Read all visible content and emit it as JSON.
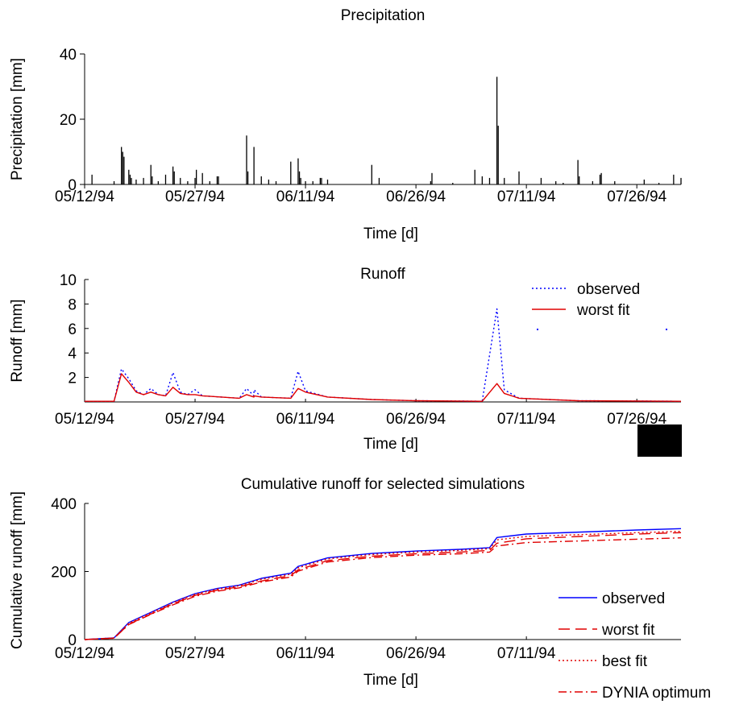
{
  "chart_data": [
    {
      "type": "bar",
      "title": "Precipitation",
      "xlabel": "Time [d]",
      "ylabel": "Precipitation [mm]",
      "ylim": [
        0,
        40
      ],
      "yticks": [
        "0",
        "20",
        "40"
      ],
      "xticks": [
        "05/12/94",
        "05/27/94",
        "06/11/94",
        "06/26/94",
        "07/11/94",
        "07/26/94"
      ],
      "xlim": [
        "05/12/94",
        "08/01/94"
      ],
      "series": [
        {
          "color": "#000000",
          "points": [
            {
              "x": "05/13/94",
              "y": 3.0
            },
            {
              "x": "05/16/94",
              "y": 1.0
            },
            {
              "x": "05/17/94",
              "y": 11.5
            },
            {
              "x": "05/17/94",
              "y": 10.0
            },
            {
              "x": "05/17/94",
              "y": 8.5
            },
            {
              "x": "05/18/94",
              "y": 4.5
            },
            {
              "x": "05/18/94",
              "y": 3.0
            },
            {
              "x": "05/18/94",
              "y": 2.0
            },
            {
              "x": "05/19/94",
              "y": 1.5
            },
            {
              "x": "05/20/94",
              "y": 2.0
            },
            {
              "x": "05/21/94",
              "y": 6.0
            },
            {
              "x": "05/21/94",
              "y": 2.5
            },
            {
              "x": "05/22/94",
              "y": 1.0
            },
            {
              "x": "05/23/94",
              "y": 3.0
            },
            {
              "x": "05/24/94",
              "y": 5.5
            },
            {
              "x": "05/24/94",
              "y": 4.0
            },
            {
              "x": "05/25/94",
              "y": 2.0
            },
            {
              "x": "05/26/94",
              "y": 1.0
            },
            {
              "x": "05/27/94",
              "y": 2.0
            },
            {
              "x": "05/27/94",
              "y": 4.5
            },
            {
              "x": "05/28/94",
              "y": 3.5
            },
            {
              "x": "05/29/94",
              "y": 1.0
            },
            {
              "x": "05/30/94",
              "y": 2.5
            },
            {
              "x": "05/30/94",
              "y": 2.5
            },
            {
              "x": "06/03/94",
              "y": 15.0
            },
            {
              "x": "06/03/94",
              "y": 4.0
            },
            {
              "x": "06/04/94",
              "y": 11.5
            },
            {
              "x": "06/05/94",
              "y": 2.5
            },
            {
              "x": "06/06/94",
              "y": 1.5
            },
            {
              "x": "06/07/94",
              "y": 1.0
            },
            {
              "x": "06/09/94",
              "y": 7.0
            },
            {
              "x": "06/10/94",
              "y": 8.0
            },
            {
              "x": "06/10/94",
              "y": 4.0
            },
            {
              "x": "06/10/94",
              "y": 2.0
            },
            {
              "x": "06/11/94",
              "y": 1.0
            },
            {
              "x": "06/12/94",
              "y": 1.0
            },
            {
              "x": "06/13/94",
              "y": 2.0
            },
            {
              "x": "06/13/94",
              "y": 2.0
            },
            {
              "x": "06/14/94",
              "y": 1.5
            },
            {
              "x": "06/20/94",
              "y": 6.0
            },
            {
              "x": "06/21/94",
              "y": 2.0
            },
            {
              "x": "06/28/94",
              "y": 1.0
            },
            {
              "x": "06/28/94",
              "y": 3.5
            },
            {
              "x": "07/01/94",
              "y": 0.5
            },
            {
              "x": "07/04/94",
              "y": 4.5
            },
            {
              "x": "07/05/94",
              "y": 2.5
            },
            {
              "x": "07/06/94",
              "y": 2.0
            },
            {
              "x": "07/07/94",
              "y": 33.0
            },
            {
              "x": "07/07/94",
              "y": 18.0
            },
            {
              "x": "07/08/94",
              "y": 2.0
            },
            {
              "x": "07/10/94",
              "y": 4.0
            },
            {
              "x": "07/13/94",
              "y": 2.0
            },
            {
              "x": "07/15/94",
              "y": 1.0
            },
            {
              "x": "07/16/94",
              "y": 0.5
            },
            {
              "x": "07/18/94",
              "y": 7.5
            },
            {
              "x": "07/18/94",
              "y": 2.5
            },
            {
              "x": "07/20/94",
              "y": 1.0
            },
            {
              "x": "07/21/94",
              "y": 3.0
            },
            {
              "x": "07/21/94",
              "y": 3.5
            },
            {
              "x": "07/23/94",
              "y": 1.0
            },
            {
              "x": "07/27/94",
              "y": 1.5
            },
            {
              "x": "07/29/94",
              "y": 0.5
            },
            {
              "x": "07/31/94",
              "y": 3.0
            },
            {
              "x": "08/01/94",
              "y": 2.0
            }
          ]
        }
      ]
    },
    {
      "type": "line",
      "title": "Runoff",
      "xlabel": "Time [d]",
      "ylabel": "Runoff [mm]",
      "ylim": [
        0,
        10
      ],
      "yticks": [
        "2",
        "4",
        "6",
        "8",
        "10"
      ],
      "xticks": [
        "05/12/94",
        "05/27/94",
        "06/11/94",
        "06/26/94",
        "07/11/94",
        "07/26/94"
      ],
      "xlim": [
        "05/12/94",
        "08/01/94"
      ],
      "legend": "top-right",
      "series": [
        {
          "name": "observed",
          "color": "#0000ff",
          "dash": "dotted",
          "points": [
            {
              "x": "05/12/94",
              "y": 0.05
            },
            {
              "x": "05/16/94",
              "y": 0.05
            },
            {
              "x": "05/17/94",
              "y": 2.7
            },
            {
              "x": "05/18/94",
              "y": 1.9
            },
            {
              "x": "05/19/94",
              "y": 0.9
            },
            {
              "x": "05/20/94",
              "y": 0.6
            },
            {
              "x": "05/21/94",
              "y": 1.1
            },
            {
              "x": "05/22/94",
              "y": 0.6
            },
            {
              "x": "05/23/94",
              "y": 0.5
            },
            {
              "x": "05/24/94",
              "y": 2.4
            },
            {
              "x": "05/25/94",
              "y": 0.8
            },
            {
              "x": "05/26/94",
              "y": 0.6
            },
            {
              "x": "05/27/94",
              "y": 1.0
            },
            {
              "x": "05/28/94",
              "y": 0.5
            },
            {
              "x": "06/02/94",
              "y": 0.3
            },
            {
              "x": "06/03/94",
              "y": 1.1
            },
            {
              "x": "06/04/94",
              "y": 0.5
            },
            {
              "x": "06/04/94",
              "y": 1.0
            },
            {
              "x": "06/05/94",
              "y": 0.4
            },
            {
              "x": "06/09/94",
              "y": 0.3
            },
            {
              "x": "06/10/94",
              "y": 2.5
            },
            {
              "x": "06/11/94",
              "y": 0.9
            },
            {
              "x": "06/14/94",
              "y": 0.4
            },
            {
              "x": "06/20/94",
              "y": 0.2
            },
            {
              "x": "06/26/94",
              "y": 0.1
            },
            {
              "x": "07/05/94",
              "y": 0.05
            },
            {
              "x": "07/07/94",
              "y": 7.6
            },
            {
              "x": "07/08/94",
              "y": 1.0
            },
            {
              "x": "07/10/94",
              "y": 0.3
            },
            {
              "x": "07/18/94",
              "y": 0.1
            },
            {
              "x": "08/01/94",
              "y": 0.05
            }
          ]
        },
        {
          "name": "worst fit",
          "color": "#e00000",
          "dash": "solid",
          "points": [
            {
              "x": "05/12/94",
              "y": 0.05
            },
            {
              "x": "05/16/94",
              "y": 0.05
            },
            {
              "x": "05/17/94",
              "y": 2.3
            },
            {
              "x": "05/18/94",
              "y": 1.6
            },
            {
              "x": "05/19/94",
              "y": 0.8
            },
            {
              "x": "05/20/94",
              "y": 0.6
            },
            {
              "x": "05/21/94",
              "y": 0.8
            },
            {
              "x": "05/22/94",
              "y": 0.6
            },
            {
              "x": "05/23/94",
              "y": 0.5
            },
            {
              "x": "05/24/94",
              "y": 1.2
            },
            {
              "x": "05/25/94",
              "y": 0.7
            },
            {
              "x": "05/26/94",
              "y": 0.6
            },
            {
              "x": "05/27/94",
              "y": 0.6
            },
            {
              "x": "05/28/94",
              "y": 0.5
            },
            {
              "x": "06/02/94",
              "y": 0.3
            },
            {
              "x": "06/03/94",
              "y": 0.6
            },
            {
              "x": "06/04/94",
              "y": 0.4
            },
            {
              "x": "06/04/94",
              "y": 0.5
            },
            {
              "x": "06/05/94",
              "y": 0.4
            },
            {
              "x": "06/09/94",
              "y": 0.3
            },
            {
              "x": "06/10/94",
              "y": 1.1
            },
            {
              "x": "06/11/94",
              "y": 0.8
            },
            {
              "x": "06/14/94",
              "y": 0.4
            },
            {
              "x": "06/20/94",
              "y": 0.2
            },
            {
              "x": "06/26/94",
              "y": 0.1
            },
            {
              "x": "07/05/94",
              "y": 0.05
            },
            {
              "x": "07/07/94",
              "y": 1.5
            },
            {
              "x": "07/08/94",
              "y": 0.7
            },
            {
              "x": "07/10/94",
              "y": 0.3
            },
            {
              "x": "07/18/94",
              "y": 0.1
            },
            {
              "x": "08/01/94",
              "y": 0.05
            }
          ]
        }
      ]
    },
    {
      "type": "line",
      "title": "Cumulative runoff for selected simulations",
      "xlabel": "Time [d]",
      "ylabel": "Cumulative runoff [mm]",
      "ylim": [
        0,
        400
      ],
      "yticks": [
        "0",
        "200",
        "400"
      ],
      "xticks": [
        "05/12/94",
        "05/27/94",
        "06/11/94",
        "06/26/94",
        "07/11/94"
      ],
      "xlim": [
        "05/12/94",
        "08/01/94"
      ],
      "legend": "bottom-right",
      "series": [
        {
          "name": "observed",
          "color": "#0000ff",
          "dash": "solid",
          "points": [
            {
              "x": "05/12/94",
              "y": 0
            },
            {
              "x": "05/16/94",
              "y": 5
            },
            {
              "x": "05/18/94",
              "y": 50
            },
            {
              "x": "05/21/94",
              "y": 80
            },
            {
              "x": "05/24/94",
              "y": 110
            },
            {
              "x": "05/27/94",
              "y": 135
            },
            {
              "x": "05/30/94",
              "y": 150
            },
            {
              "x": "06/02/94",
              "y": 160
            },
            {
              "x": "06/05/94",
              "y": 180
            },
            {
              "x": "06/09/94",
              "y": 195
            },
            {
              "x": "06/10/94",
              "y": 215
            },
            {
              "x": "06/14/94",
              "y": 240
            },
            {
              "x": "06/20/94",
              "y": 253
            },
            {
              "x": "06/26/94",
              "y": 260
            },
            {
              "x": "07/02/94",
              "y": 265
            },
            {
              "x": "07/06/94",
              "y": 270
            },
            {
              "x": "07/07/94",
              "y": 300
            },
            {
              "x": "07/11/94",
              "y": 310
            },
            {
              "x": "07/26/94",
              "y": 322
            },
            {
              "x": "08/01/94",
              "y": 326
            }
          ]
        },
        {
          "name": "worst fit",
          "color": "#e00000",
          "dash": "dashed",
          "points": [
            {
              "x": "05/12/94",
              "y": 0
            },
            {
              "x": "05/16/94",
              "y": 4
            },
            {
              "x": "05/18/94",
              "y": 45
            },
            {
              "x": "05/21/94",
              "y": 75
            },
            {
              "x": "05/24/94",
              "y": 105
            },
            {
              "x": "05/27/94",
              "y": 130
            },
            {
              "x": "05/30/94",
              "y": 145
            },
            {
              "x": "06/02/94",
              "y": 155
            },
            {
              "x": "06/05/94",
              "y": 172
            },
            {
              "x": "06/09/94",
              "y": 188
            },
            {
              "x": "06/10/94",
              "y": 205
            },
            {
              "x": "06/14/94",
              "y": 232
            },
            {
              "x": "06/20/94",
              "y": 245
            },
            {
              "x": "06/26/94",
              "y": 252
            },
            {
              "x": "07/02/94",
              "y": 257
            },
            {
              "x": "07/06/94",
              "y": 262
            },
            {
              "x": "07/07/94",
              "y": 283
            },
            {
              "x": "07/11/94",
              "y": 296
            },
            {
              "x": "07/26/94",
              "y": 310
            },
            {
              "x": "08/01/94",
              "y": 314
            }
          ]
        },
        {
          "name": "best fit",
          "color": "#e00000",
          "dash": "dotted",
          "points": [
            {
              "x": "05/12/94",
              "y": 0
            },
            {
              "x": "05/16/94",
              "y": 5
            },
            {
              "x": "05/18/94",
              "y": 48
            },
            {
              "x": "05/21/94",
              "y": 78
            },
            {
              "x": "05/24/94",
              "y": 108
            },
            {
              "x": "05/27/94",
              "y": 133
            },
            {
              "x": "05/30/94",
              "y": 148
            },
            {
              "x": "06/02/94",
              "y": 158
            },
            {
              "x": "06/05/94",
              "y": 177
            },
            {
              "x": "06/09/94",
              "y": 192
            },
            {
              "x": "06/10/94",
              "y": 211
            },
            {
              "x": "06/14/94",
              "y": 237
            },
            {
              "x": "06/20/94",
              "y": 250
            },
            {
              "x": "06/26/94",
              "y": 257
            },
            {
              "x": "07/02/94",
              "y": 262
            },
            {
              "x": "07/06/94",
              "y": 267
            },
            {
              "x": "07/07/94",
              "y": 293
            },
            {
              "x": "07/11/94",
              "y": 303
            },
            {
              "x": "07/26/94",
              "y": 314
            },
            {
              "x": "08/01/94",
              "y": 318
            }
          ]
        },
        {
          "name": "DYNIA optimum",
          "color": "#e00000",
          "dash": "dashdot",
          "points": [
            {
              "x": "05/12/94",
              "y": 0
            },
            {
              "x": "05/16/94",
              "y": 4
            },
            {
              "x": "05/18/94",
              "y": 44
            },
            {
              "x": "05/21/94",
              "y": 74
            },
            {
              "x": "05/24/94",
              "y": 102
            },
            {
              "x": "05/27/94",
              "y": 127
            },
            {
              "x": "05/30/94",
              "y": 142
            },
            {
              "x": "06/02/94",
              "y": 152
            },
            {
              "x": "06/05/94",
              "y": 169
            },
            {
              "x": "06/09/94",
              "y": 184
            },
            {
              "x": "06/10/94",
              "y": 201
            },
            {
              "x": "06/14/94",
              "y": 228
            },
            {
              "x": "06/20/94",
              "y": 241
            },
            {
              "x": "06/26/94",
              "y": 248
            },
            {
              "x": "07/02/94",
              "y": 252
            },
            {
              "x": "07/06/94",
              "y": 257
            },
            {
              "x": "07/07/94",
              "y": 275
            },
            {
              "x": "07/11/94",
              "y": 285
            },
            {
              "x": "07/26/94",
              "y": 295
            },
            {
              "x": "08/01/94",
              "y": 299
            }
          ]
        }
      ]
    }
  ]
}
